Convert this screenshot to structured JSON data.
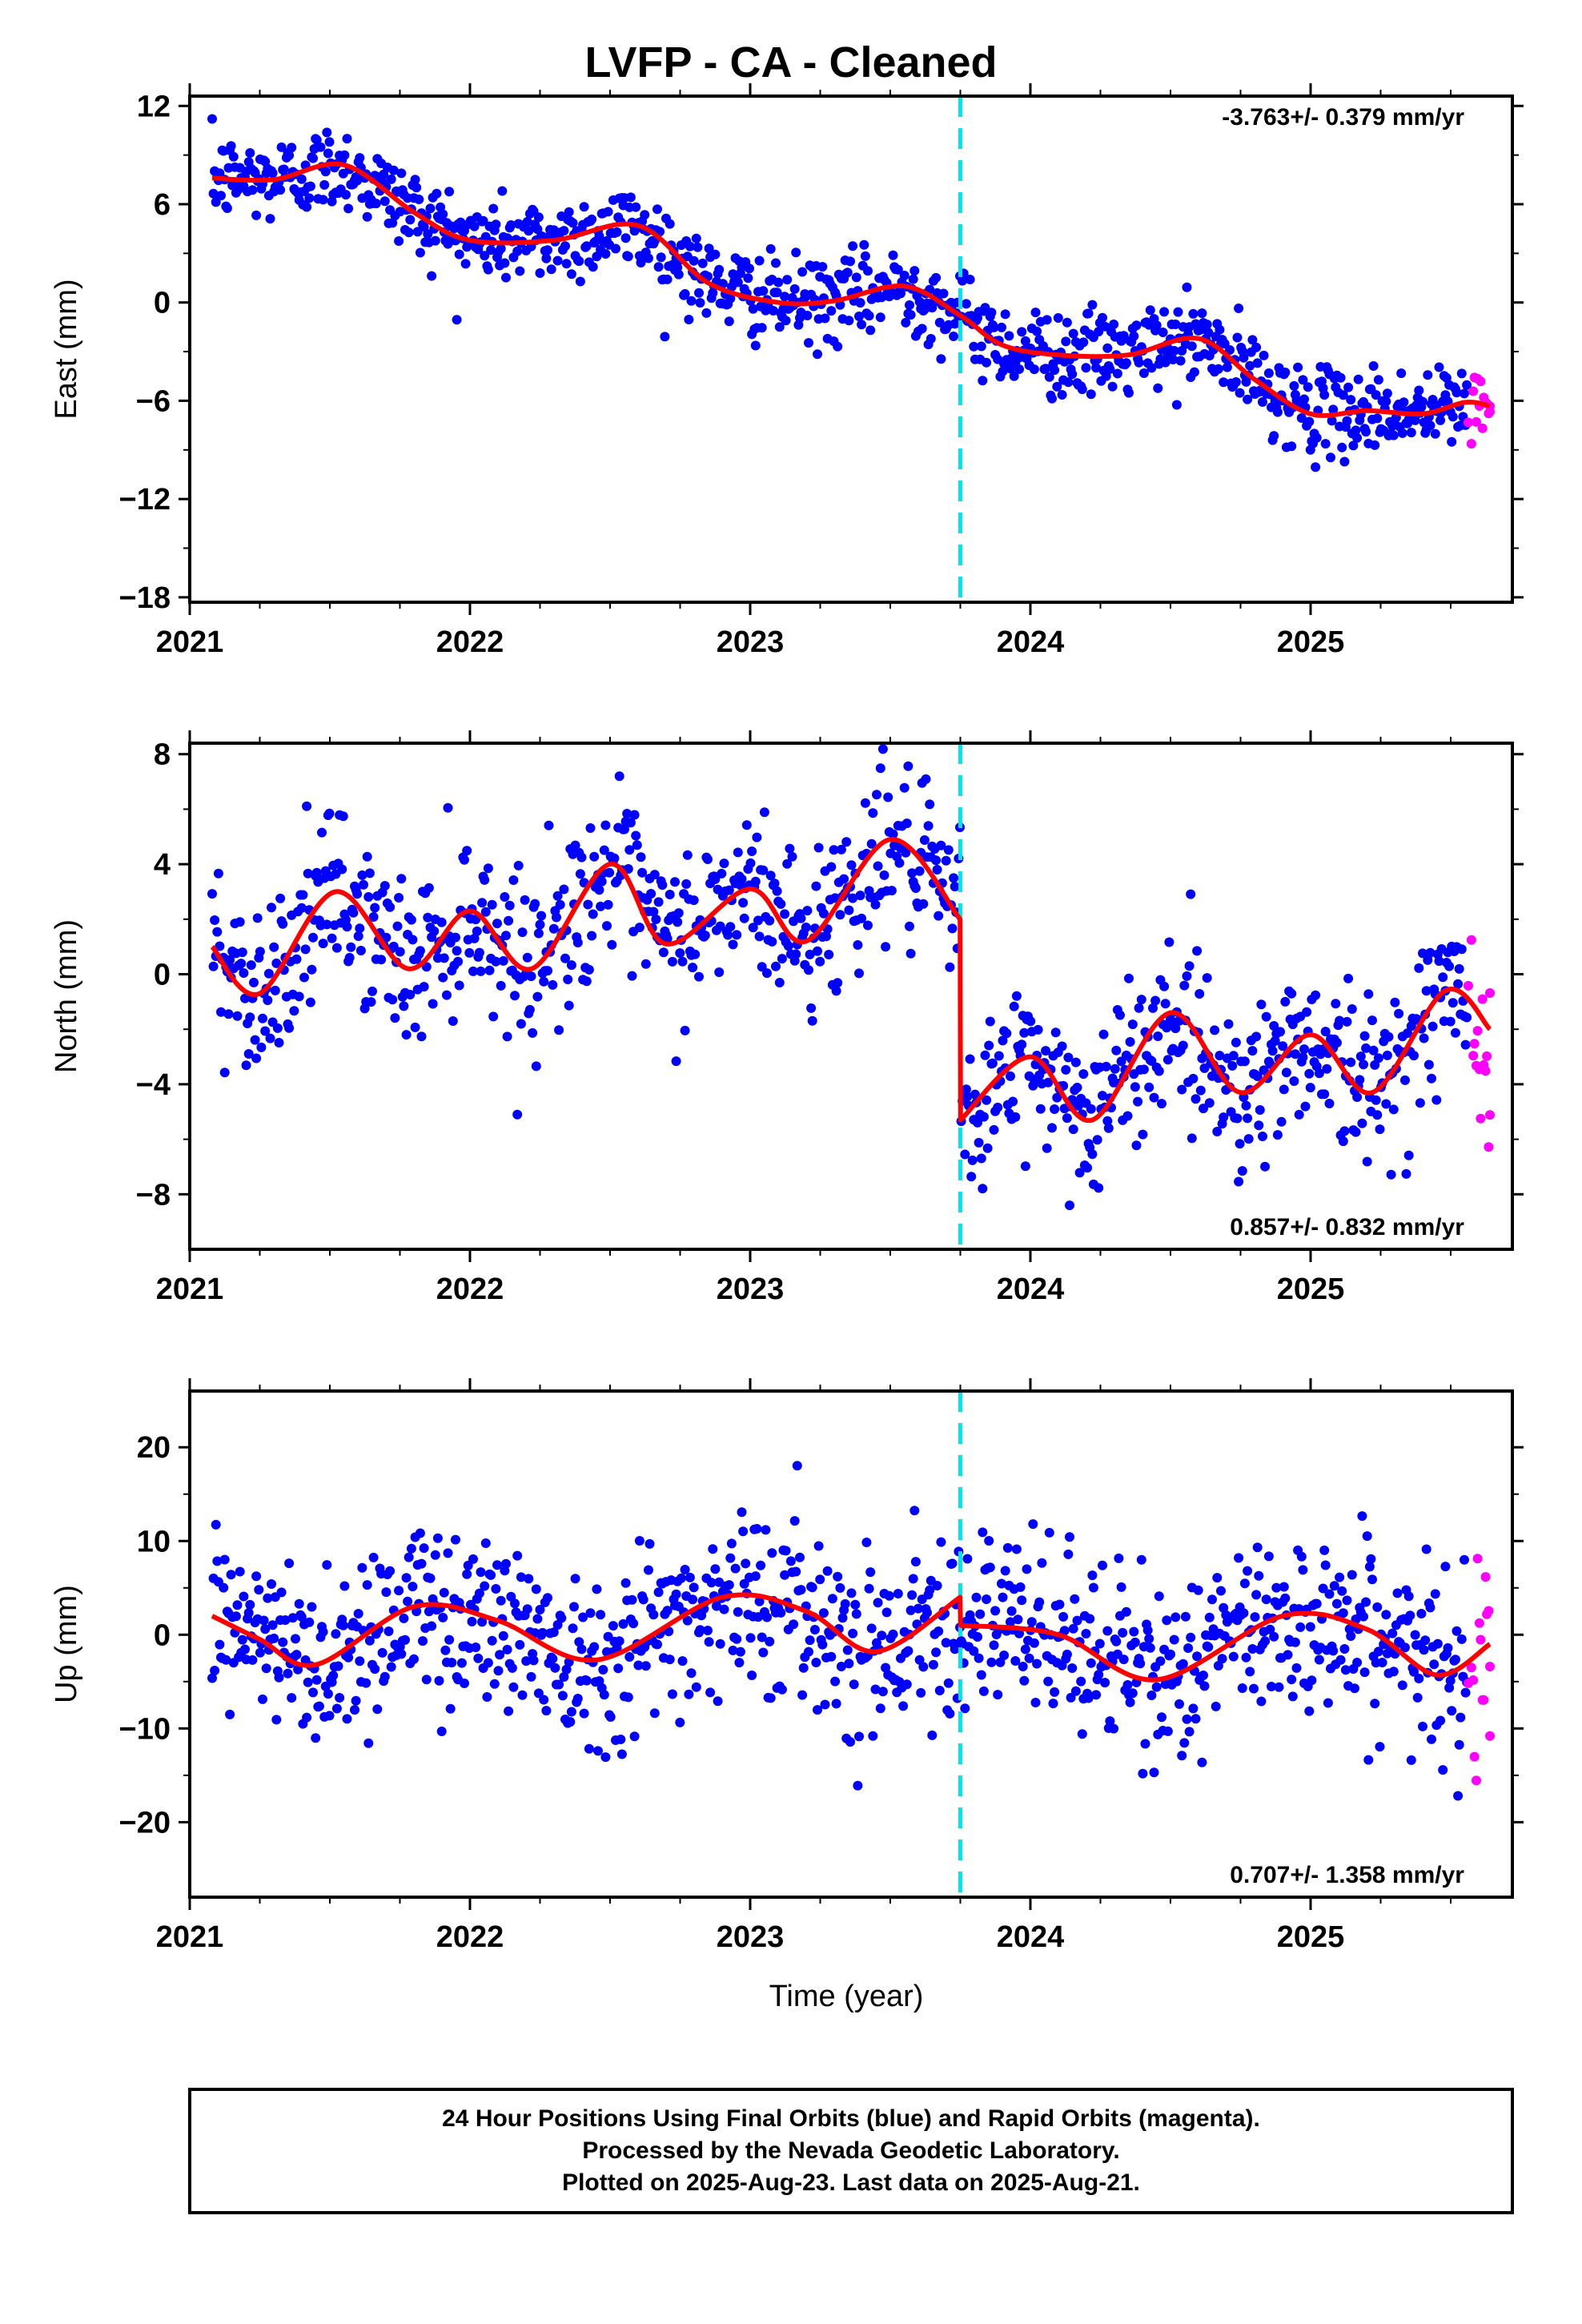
{
  "title": "LVFP  - CA - Cleaned",
  "xlabel": "Time (year)",
  "footer": [
    "24 Hour Positions Using Final Orbits (blue) and Rapid Orbits (magenta).",
    "Processed by the Nevada Geodetic Laboratory.",
    "Plotted on 2025-Aug-23. Last data on 2025-Aug-21."
  ],
  "colors": {
    "final": "#0000ff",
    "rapid": "#ff00ff",
    "model": "#ff0000",
    "event": "#00e5ee",
    "frame": "#000000"
  },
  "x_tick_labels": [
    "2021",
    "2022",
    "2023",
    "2024",
    "2025"
  ],
  "chart_data": [
    {
      "type": "scatter",
      "name": "East",
      "ylabel": "East (mm)",
      "rate_label": "-3.763+/- 0.379 mm/yr",
      "xlim": [
        2021.0,
        2025.72
      ],
      "ylim": [
        -18.3,
        12.6
      ],
      "yticks": [
        12,
        6,
        0,
        -6,
        -12,
        -18
      ],
      "ytick_labels": [
        "12",
        "6",
        "0",
        "−6",
        "−12",
        "−18"
      ],
      "event_line_x": 2023.75,
      "data_start": 2021.08,
      "final_end": 2025.56,
      "rapid_end": 2025.64,
      "trend": {
        "x": [
          2021.08,
          2021.3,
          2021.55,
          2021.8,
          2022.0,
          2022.3,
          2022.6,
          2022.85,
          2023.1,
          2023.3,
          2023.55,
          2023.75,
          2023.9,
          2024.1,
          2024.35,
          2024.6,
          2024.8,
          2025.0,
          2025.2,
          2025.4,
          2025.55,
          2025.64
        ],
        "y": [
          7.6,
          7.5,
          8.4,
          5.5,
          3.8,
          3.8,
          4.7,
          1.2,
          0.0,
          0.1,
          1.0,
          -0.8,
          -2.6,
          -3.2,
          -3.2,
          -2.2,
          -4.7,
          -6.8,
          -6.6,
          -6.8,
          -6.1,
          -6.3
        ]
      },
      "scatter_sd": 1.3
    },
    {
      "type": "scatter",
      "name": "North",
      "ylabel": "North (mm)",
      "rate_label": "0.857+/- 0.832 mm/yr",
      "xlim": [
        2021.0,
        2025.72
      ],
      "ylim": [
        -10.0,
        8.4
      ],
      "yticks": [
        8,
        4,
        0,
        -4,
        -8
      ],
      "ytick_labels": [
        "8",
        "4",
        "0",
        "−4",
        "−8"
      ],
      "event_line_x": 2023.75,
      "data_start": 2021.08,
      "final_end": 2025.56,
      "rapid_end": 2025.64,
      "trend": {
        "x": [
          2021.08,
          2021.25,
          2021.52,
          2021.78,
          2022.0,
          2022.22,
          2022.5,
          2022.7,
          2023.0,
          2023.2,
          2023.5,
          2023.749,
          2023.751,
          2024.0,
          2024.22,
          2024.5,
          2024.75,
          2025.0,
          2025.22,
          2025.48,
          2025.64
        ],
        "y": [
          1.0,
          -0.7,
          3.0,
          0.2,
          2.3,
          0.2,
          4.0,
          1.1,
          3.1,
          1.2,
          4.9,
          2.0,
          -5.3,
          -3.0,
          -5.3,
          -1.4,
          -4.3,
          -2.2,
          -4.3,
          -0.6,
          -2.0
        ]
      },
      "scatter_sd": 1.5
    },
    {
      "type": "scatter",
      "name": "Up",
      "ylabel": "Up (mm)",
      "rate_label": "0.707+/- 1.358 mm/yr",
      "xlim": [
        2021.0,
        2025.72
      ],
      "ylim": [
        -28.0,
        26.0
      ],
      "yticks": [
        20,
        10,
        0,
        -10,
        -20
      ],
      "ytick_labels": [
        "20",
        "10",
        "0",
        "−10",
        "−20"
      ],
      "event_line_x": 2023.75,
      "data_start": 2021.08,
      "final_end": 2025.56,
      "rapid_end": 2025.64,
      "trend": {
        "x": [
          2021.08,
          2021.25,
          2021.45,
          2021.8,
          2022.1,
          2022.45,
          2022.9,
          2023.2,
          2023.45,
          2023.749,
          2023.751,
          2024.1,
          2024.45,
          2024.9,
          2025.2,
          2025.45,
          2025.64
        ],
        "y": [
          2.0,
          -0.5,
          -3.2,
          3.0,
          1.5,
          -2.7,
          4.0,
          2.5,
          -1.8,
          4.0,
          1.0,
          0.0,
          -4.8,
          2.0,
          0.6,
          -4.3,
          -1.0
        ]
      },
      "scatter_sd": 4.8
    }
  ]
}
